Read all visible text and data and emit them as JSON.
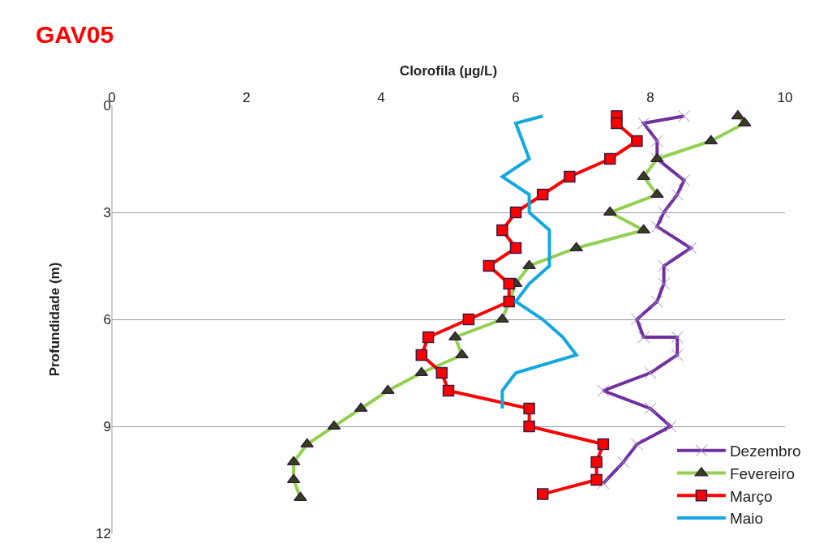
{
  "chart_data": {
    "type": "line",
    "title": "GAV05",
    "xlabel": "Clorofila (µg/L)",
    "ylabel": "Profundidade (m)",
    "xlim": [
      0,
      10
    ],
    "xticks": [
      0,
      2,
      4,
      6,
      8,
      10
    ],
    "ylim": [
      12,
      0
    ],
    "yticks": [
      0,
      3,
      6,
      9,
      12
    ],
    "grid": "y",
    "legend": "bottom right",
    "series": [
      {
        "name": "Dezembro",
        "color": "#7030a0",
        "marker": "cross",
        "x": [
          8.5,
          7.9,
          8.1,
          8.1,
          8.5,
          8.4,
          8.2,
          8.1,
          8.6,
          8.2,
          8.2,
          8.1,
          7.8,
          7.9,
          8.4,
          8.4,
          8.0,
          7.3,
          8.0,
          8.3,
          7.8,
          7.6,
          7.3
        ],
        "values": [
          0.3,
          0.5,
          1.0,
          1.5,
          2.1,
          2.5,
          3.0,
          3.4,
          4.0,
          4.5,
          5.0,
          5.5,
          6.0,
          6.5,
          6.5,
          7.0,
          7.5,
          8.0,
          8.5,
          9.0,
          9.5,
          10.0,
          10.6
        ]
      },
      {
        "name": "Fevereiro",
        "color": "#92d050",
        "marker": "triangle",
        "x": [
          9.3,
          9.4,
          8.9,
          8.1,
          7.9,
          8.1,
          7.4,
          7.9,
          6.9,
          6.2,
          6.0,
          5.8,
          5.1,
          5.2,
          4.6,
          4.1,
          3.7,
          3.3,
          2.9,
          2.7,
          2.7,
          2.8
        ],
        "values": [
          0.3,
          0.5,
          1.0,
          1.5,
          2.0,
          2.5,
          3.0,
          3.5,
          4.0,
          4.5,
          5.0,
          6.0,
          6.5,
          7.0,
          7.5,
          8.0,
          8.5,
          9.0,
          9.5,
          10.0,
          10.5,
          11.0
        ]
      },
      {
        "name": "Março",
        "color": "#ff0000",
        "marker": "square",
        "x": [
          7.5,
          7.5,
          7.8,
          7.4,
          6.8,
          6.4,
          6.0,
          5.8,
          6.0,
          5.6,
          5.9,
          5.9,
          5.3,
          4.7,
          4.6,
          4.9,
          5.0,
          6.2,
          6.2,
          7.3,
          7.2,
          7.2,
          6.4
        ],
        "values": [
          0.3,
          0.5,
          1.0,
          1.5,
          2.0,
          2.5,
          3.0,
          3.5,
          4.0,
          4.5,
          5.0,
          5.5,
          6.0,
          6.5,
          7.0,
          7.5,
          8.0,
          8.5,
          9.0,
          9.5,
          10.0,
          10.5,
          10.9
        ]
      },
      {
        "name": "Maio",
        "color": "#13a8e0",
        "marker": "none",
        "x": [
          6.4,
          6.0,
          6.1,
          6.2,
          5.8,
          6.2,
          6.2,
          6.5,
          6.5,
          6.5,
          6.2,
          6.0,
          6.4,
          6.7,
          6.9,
          6.0,
          5.8,
          5.8
        ],
        "values": [
          0.3,
          0.5,
          1.0,
          1.5,
          2.0,
          2.5,
          3.0,
          3.5,
          4.0,
          4.5,
          5.0,
          5.5,
          6.0,
          6.5,
          7.0,
          7.5,
          8.0,
          8.5
        ]
      }
    ]
  }
}
